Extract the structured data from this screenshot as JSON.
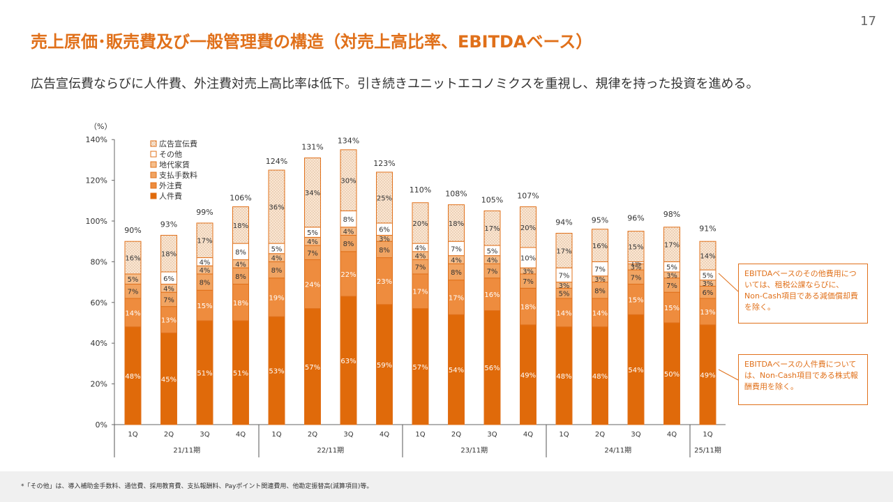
{
  "page_number": "17",
  "title": "売上原価･販売費及び一般管理費の構造（対売上高比率、EBITDAベース）",
  "subtitle": "広告宣伝費ならびに人件費、外注費対売上高比率は低下。引き続きユニットエコノミクスを重視し、規律を持った投資を進める。",
  "notes": [
    "EBITDAベースのその他費用については、租税公課ならびに、Non-Cash項目である減価償却費を除く。",
    "EBITDAベースの人件費については、Non-Cash項目である株式報酬費用を除く。"
  ],
  "footnote": "*「その他」は、導入補助金手数料、通信費、採用教育費、支払報酬料、Payポイント関連費用、他勘定振替高(減算項目)等。",
  "colors": {
    "accent": "#E0701A",
    "personnel": "#E06A0A",
    "outsourcing": "#EE8C3E",
    "payment_fees": "#F1A462",
    "rent": "#F5BE8C",
    "other": "#FFFFFF",
    "advertising": "#FBE6D2"
  },
  "chart_data": {
    "type": "bar",
    "stacked": true,
    "ylabel": "（%）",
    "ylim": [
      0,
      140
    ],
    "yticks": [
      "0%",
      "20%",
      "40%",
      "60%",
      "80%",
      "100%",
      "120%",
      "140%"
    ],
    "categories": [
      "1Q",
      "2Q",
      "3Q",
      "4Q",
      "1Q",
      "2Q",
      "3Q",
      "4Q",
      "1Q",
      "2Q",
      "3Q",
      "4Q",
      "1Q",
      "2Q",
      "3Q",
      "4Q",
      "1Q"
    ],
    "groups": [
      {
        "label": "21/11期",
        "count": 4
      },
      {
        "label": "22/11期",
        "count": 4
      },
      {
        "label": "23/11期",
        "count": 4
      },
      {
        "label": "24/11期",
        "count": 4
      },
      {
        "label": "25/11期",
        "count": 1
      }
    ],
    "totals": [
      90,
      93,
      99,
      106,
      124,
      131,
      134,
      123,
      110,
      108,
      105,
      107,
      94,
      95,
      96,
      98,
      91
    ],
    "series": [
      {
        "name": "人件費",
        "values": [
          48,
          45,
          51,
          51,
          53,
          57,
          63,
          59,
          57,
          54,
          56,
          49,
          48,
          48,
          54,
          50,
          49
        ]
      },
      {
        "name": "外注費",
        "values": [
          14,
          13,
          15,
          18,
          19,
          24,
          22,
          23,
          17,
          17,
          16,
          18,
          14,
          14,
          15,
          15,
          13
        ]
      },
      {
        "name": "支払手数料",
        "values": [
          7,
          7,
          8,
          8,
          8,
          7,
          8,
          8,
          7,
          8,
          7,
          7,
          5,
          8,
          7,
          7,
          6
        ]
      },
      {
        "name": "地代家賃",
        "values": [
          5,
          4,
          4,
          4,
          4,
          4,
          4,
          3,
          4,
          4,
          4,
          3,
          3,
          3,
          3,
          3,
          3
        ]
      },
      {
        "name": "その他",
        "values": [
          null,
          6,
          4,
          8,
          5,
          5,
          8,
          6,
          4,
          7,
          5,
          10,
          7,
          7,
          1,
          5,
          5
        ]
      },
      {
        "name": "広告宣伝費",
        "values": [
          16,
          18,
          17,
          18,
          36,
          34,
          30,
          25,
          20,
          18,
          17,
          20,
          17,
          16,
          15,
          17,
          14
        ]
      }
    ],
    "legend": [
      "広告宣伝費",
      "その他",
      "地代家賃",
      "支払手数料",
      "外注費",
      "人件費"
    ],
    "legend_position": "top-left"
  }
}
